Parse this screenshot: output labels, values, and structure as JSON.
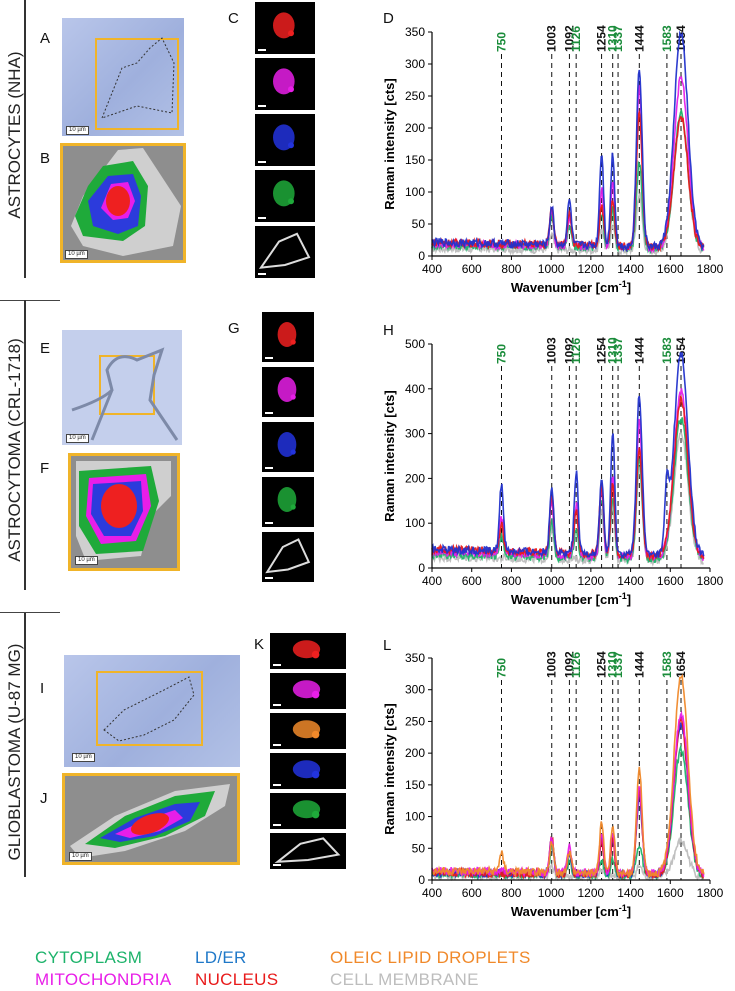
{
  "rows": [
    {
      "label": "ASTROCYTES (NHA)",
      "panels": {
        "micro": "A",
        "map": "B",
        "channels": "C",
        "spectrum": "D"
      }
    },
    {
      "label": "ASTROCYTOMA (CRL-1718)",
      "panels": {
        "micro": "E",
        "map": "F",
        "channels": "G",
        "spectrum": "H"
      }
    },
    {
      "label": "GLIOBLASTOMA (U-87 MG)",
      "panels": {
        "micro": "I",
        "map": "J",
        "channels": "K",
        "spectrum": "L"
      }
    }
  ],
  "scale_bar": "10 µm",
  "legend": [
    {
      "label": "CYTOPLASM",
      "color": "#1db36b"
    },
    {
      "label": "LD/ER",
      "color": "#1f78c8"
    },
    {
      "label": "OLEIC LIPID DROPLETS",
      "color": "#f0892a"
    },
    {
      "label": "MITOCHONDRIA",
      "color": "#e81ee8"
    },
    {
      "label": "NUCLEUS",
      "color": "#e81a1a"
    },
    {
      "label": "CELL MEMBRANE",
      "color": "#bdbdbd"
    }
  ],
  "chart_data": [
    {
      "type": "line",
      "panel": "D",
      "xlabel": "Wavenumber [cm-1]",
      "xlabel_base": "Wavenumber [cm",
      "xlabel_sup": "-1",
      "xlabel_end": "]",
      "ylabel": "Raman intensity [cts]",
      "xlim": [
        400,
        1800
      ],
      "ylim": [
        0,
        350
      ],
      "xticks": [
        400,
        600,
        800,
        1000,
        1200,
        1400,
        1600,
        1800
      ],
      "yticks": [
        0,
        50,
        100,
        150,
        200,
        250,
        300,
        350
      ],
      "peak_lines": [
        {
          "x": 750,
          "label": "750",
          "color": "#1a8c3a"
        },
        {
          "x": 1003,
          "label": "1003",
          "color": "#111111"
        },
        {
          "x": 1092,
          "label": "1092",
          "color": "#111111"
        },
        {
          "x": 1126,
          "label": "1126",
          "color": "#1a8c3a"
        },
        {
          "x": 1254,
          "label": "1254",
          "color": "#111111"
        },
        {
          "x": 1310,
          "label": "1310",
          "color": "#1a8c3a"
        },
        {
          "x": 1337,
          "label": "1337",
          "color": "#1a8c3a"
        },
        {
          "x": 1444,
          "label": "1444",
          "color": "#111111"
        },
        {
          "x": 1583,
          "label": "1583",
          "color": "#1a8c3a"
        },
        {
          "x": 1654,
          "label": "1654",
          "color": "#111111"
        }
      ],
      "series": [
        {
          "name": "CELL MEMBRANE",
          "color": "#bdbdbd",
          "baseline": 10,
          "peaks": [
            [
              1003,
              30
            ],
            [
              1254,
              40
            ],
            [
              1310,
              45
            ],
            [
              1444,
              95
            ],
            [
              1654,
              215
            ]
          ]
        },
        {
          "name": "CYTOPLASM",
          "color": "#1db36b",
          "baseline": 14,
          "peaks": [
            [
              1003,
              60
            ],
            [
              1092,
              40
            ],
            [
              1254,
              65
            ],
            [
              1310,
              70
            ],
            [
              1444,
              145
            ],
            [
              1654,
              220
            ]
          ]
        },
        {
          "name": "MITOCHONDRIA",
          "color": "#e81ee8",
          "baseline": 16,
          "peaks": [
            [
              1003,
              65
            ],
            [
              1092,
              55
            ],
            [
              1254,
              100
            ],
            [
              1310,
              110
            ],
            [
              1444,
              260
            ],
            [
              1654,
              275
            ]
          ]
        },
        {
          "name": "NUCLEUS",
          "color": "#e81a1a",
          "baseline": 18,
          "peaks": [
            [
              1003,
              70
            ],
            [
              1092,
              65
            ],
            [
              1254,
              75
            ],
            [
              1310,
              80
            ],
            [
              1444,
              220
            ],
            [
              1654,
              215
            ]
          ]
        },
        {
          "name": "LD/ER",
          "color": "#2233cc",
          "baseline": 18,
          "peaks": [
            [
              1003,
              70
            ],
            [
              1092,
              80
            ],
            [
              1254,
              155
            ],
            [
              1310,
              155
            ],
            [
              1444,
              290
            ],
            [
              1654,
              345
            ]
          ]
        }
      ]
    },
    {
      "type": "line",
      "panel": "H",
      "xlabel": "Wavenumber [cm-1]",
      "xlabel_base": "Wavenumber [cm",
      "xlabel_sup": "-1",
      "xlabel_end": "]",
      "ylabel": "Raman intensity [cts]",
      "xlim": [
        400,
        1800
      ],
      "ylim": [
        0,
        500
      ],
      "xticks": [
        400,
        600,
        800,
        1000,
        1200,
        1400,
        1600,
        1800
      ],
      "yticks": [
        0,
        100,
        200,
        300,
        400,
        500
      ],
      "peak_lines": [
        {
          "x": 750,
          "label": "750",
          "color": "#1a8c3a"
        },
        {
          "x": 1003,
          "label": "1003",
          "color": "#111111"
        },
        {
          "x": 1092,
          "label": "1092",
          "color": "#111111"
        },
        {
          "x": 1126,
          "label": "1126",
          "color": "#1a8c3a"
        },
        {
          "x": 1254,
          "label": "1254",
          "color": "#111111"
        },
        {
          "x": 1310,
          "label": "1310",
          "color": "#1a8c3a"
        },
        {
          "x": 1337,
          "label": "1337",
          "color": "#1a8c3a"
        },
        {
          "x": 1444,
          "label": "1444",
          "color": "#111111"
        },
        {
          "x": 1583,
          "label": "1583",
          "color": "#1a8c3a"
        },
        {
          "x": 1654,
          "label": "1654",
          "color": "#111111"
        }
      ],
      "series": [
        {
          "name": "CELL MEMBRANE",
          "color": "#bdbdbd",
          "baseline": 20,
          "peaks": [
            [
              1003,
              80
            ],
            [
              1254,
              130
            ],
            [
              1310,
              140
            ],
            [
              1444,
              220
            ],
            [
              1654,
              300
            ]
          ]
        },
        {
          "name": "CYTOPLASM",
          "color": "#1db36b",
          "baseline": 25,
          "peaks": [
            [
              750,
              60
            ],
            [
              1003,
              100
            ],
            [
              1126,
              80
            ],
            [
              1254,
              150
            ],
            [
              1310,
              150
            ],
            [
              1444,
              240
            ],
            [
              1654,
              330
            ]
          ]
        },
        {
          "name": "MITOCHONDRIA",
          "color": "#e81ee8",
          "baseline": 30,
          "peaks": [
            [
              750,
              100
            ],
            [
              1003,
              140
            ],
            [
              1126,
              130
            ],
            [
              1254,
              170
            ],
            [
              1310,
              200
            ],
            [
              1444,
              320
            ],
            [
              1654,
              390
            ]
          ]
        },
        {
          "name": "NUCLEUS",
          "color": "#e81a1a",
          "baseline": 35,
          "peaks": [
            [
              750,
              80
            ],
            [
              1003,
              150
            ],
            [
              1126,
              120
            ],
            [
              1254,
              180
            ],
            [
              1310,
              185
            ],
            [
              1444,
              260
            ],
            [
              1654,
              370
            ]
          ]
        },
        {
          "name": "LD/ER",
          "color": "#2233cc",
          "baseline": 35,
          "peaks": [
            [
              750,
              170
            ],
            [
              1003,
              170
            ],
            [
              1126,
              200
            ],
            [
              1254,
              190
            ],
            [
              1310,
              290
            ],
            [
              1444,
              380
            ],
            [
              1583,
              150
            ],
            [
              1654,
              470
            ]
          ]
        }
      ]
    },
    {
      "type": "line",
      "panel": "L",
      "xlabel": "Wavenumber [cm-1]",
      "xlabel_base": "Wavenumber [cm",
      "xlabel_sup": "-1",
      "xlabel_end": "]",
      "ylabel": "Raman intensity [cts]",
      "xlim": [
        400,
        1800
      ],
      "ylim": [
        0,
        350
      ],
      "xticks": [
        400,
        600,
        800,
        1000,
        1200,
        1400,
        1600,
        1800
      ],
      "yticks": [
        0,
        50,
        100,
        150,
        200,
        250,
        300,
        350
      ],
      "peak_lines": [
        {
          "x": 750,
          "label": "750",
          "color": "#1a8c3a"
        },
        {
          "x": 1003,
          "label": "1003",
          "color": "#111111"
        },
        {
          "x": 1092,
          "label": "1092",
          "color": "#111111"
        },
        {
          "x": 1126,
          "label": "1126",
          "color": "#1a8c3a"
        },
        {
          "x": 1254,
          "label": "1254",
          "color": "#111111"
        },
        {
          "x": 1310,
          "label": "1310",
          "color": "#1a8c3a"
        },
        {
          "x": 1337,
          "label": "1337",
          "color": "#1a8c3a"
        },
        {
          "x": 1444,
          "label": "1444",
          "color": "#111111"
        },
        {
          "x": 1583,
          "label": "1583",
          "color": "#1a8c3a"
        },
        {
          "x": 1654,
          "label": "1654",
          "color": "#111111"
        }
      ],
      "series": [
        {
          "name": "CELL MEMBRANE",
          "color": "#bdbdbd",
          "baseline": 6,
          "peaks": [
            [
              1003,
              20
            ],
            [
              1254,
              15
            ],
            [
              1444,
              20
            ],
            [
              1654,
              60
            ]
          ]
        },
        {
          "name": "CYTOPLASM",
          "color": "#1db36b",
          "baseline": 8,
          "peaks": [
            [
              1003,
              50
            ],
            [
              1092,
              25
            ],
            [
              1254,
              30
            ],
            [
              1310,
              30
            ],
            [
              1444,
              55
            ],
            [
              1654,
              205
            ]
          ]
        },
        {
          "name": "LD/ER",
          "color": "#2233cc",
          "baseline": 10,
          "peaks": [
            [
              1003,
              60
            ],
            [
              1092,
              40
            ],
            [
              1254,
              60
            ],
            [
              1310,
              65
            ],
            [
              1444,
              130
            ],
            [
              1654,
              245
            ]
          ]
        },
        {
          "name": "NUCLEUS",
          "color": "#e81a1a",
          "baseline": 10,
          "peaks": [
            [
              1003,
              62
            ],
            [
              1092,
              42
            ],
            [
              1254,
              60
            ],
            [
              1310,
              60
            ],
            [
              1444,
              140
            ],
            [
              1654,
              250
            ]
          ]
        },
        {
          "name": "MITOCHONDRIA",
          "color": "#e81ee8",
          "baseline": 12,
          "peaks": [
            [
              1003,
              62
            ],
            [
              1092,
              48
            ],
            [
              1254,
              70
            ],
            [
              1310,
              72
            ],
            [
              1444,
              145
            ],
            [
              1654,
              260
            ]
          ]
        },
        {
          "name": "OLEIC LIPID DROPLETS",
          "color": "#f0892a",
          "baseline": 12,
          "peaks": [
            [
              750,
              38
            ],
            [
              1003,
              55
            ],
            [
              1092,
              40
            ],
            [
              1254,
              90
            ],
            [
              1310,
              85
            ],
            [
              1444,
              170
            ],
            [
              1654,
              320
            ]
          ]
        }
      ]
    }
  ]
}
